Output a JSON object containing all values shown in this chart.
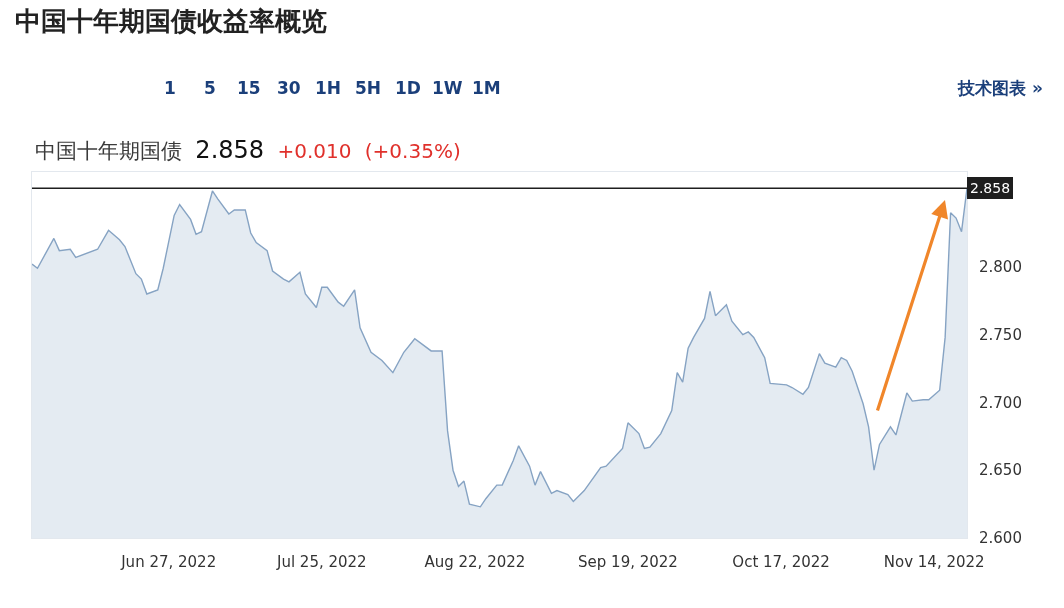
{
  "chart_data": {
    "type": "area",
    "title": "中国十年期国债收益率概览",
    "subtitle": "中国十年期国债 2.858 +0.010 (+0.35%)",
    "annotations": [
      "1",
      "5",
      "15",
      "30",
      "1H",
      "5H",
      "1D",
      "1W",
      "1M",
      "技术图表 »"
    ],
    "x": [
      "2022-06-02",
      "2022-06-03",
      "2022-06-06",
      "2022-06-07",
      "2022-06-09",
      "2022-06-10",
      "2022-06-14",
      "2022-06-16",
      "2022-06-18",
      "2022-06-19",
      "2022-06-21",
      "2022-06-22",
      "2022-06-23",
      "2022-06-25",
      "2022-06-26",
      "2022-06-28",
      "2022-06-29",
      "2022-07-01",
      "2022-07-02",
      "2022-07-03",
      "2022-07-05",
      "2022-07-06",
      "2022-07-08",
      "2022-07-09",
      "2022-07-11",
      "2022-07-12",
      "2022-07-13",
      "2022-07-15",
      "2022-07-16",
      "2022-07-18",
      "2022-07-19",
      "2022-07-21",
      "2022-07-22",
      "2022-07-24",
      "2022-07-25",
      "2022-07-26",
      "2022-07-28",
      "2022-07-29",
      "2022-07-31",
      "2022-08-01",
      "2022-08-03",
      "2022-08-05",
      "2022-08-07",
      "2022-08-09",
      "2022-08-11",
      "2022-08-14",
      "2022-08-16",
      "2022-08-17",
      "2022-08-18",
      "2022-08-19",
      "2022-08-20",
      "2022-08-21",
      "2022-08-23",
      "2022-08-24",
      "2022-08-26",
      "2022-08-27",
      "2022-08-29",
      "2022-08-30",
      "2022-09-01",
      "2022-09-02",
      "2022-09-03",
      "2022-09-05",
      "2022-09-06",
      "2022-09-08",
      "2022-09-09",
      "2022-09-11",
      "2022-09-14",
      "2022-09-15",
      "2022-09-18",
      "2022-09-19",
      "2022-09-21",
      "2022-09-22",
      "2022-09-23",
      "2022-09-25",
      "2022-09-27",
      "2022-09-28",
      "2022-09-29",
      "2022-09-30",
      "2022-10-01",
      "2022-10-03",
      "2022-10-04",
      "2022-10-05",
      "2022-10-07",
      "2022-10-08",
      "2022-10-10",
      "2022-10-11",
      "2022-10-12",
      "2022-10-14",
      "2022-10-15",
      "2022-10-18",
      "2022-10-19",
      "2022-10-21",
      "2022-10-22",
      "2022-10-24",
      "2022-10-25",
      "2022-10-27",
      "2022-10-28",
      "2022-10-29",
      "2022-10-30",
      "2022-11-01",
      "2022-11-02",
      "2022-11-03",
      "2022-11-04",
      "2022-11-06",
      "2022-11-07",
      "2022-11-09",
      "2022-11-10",
      "2022-11-12",
      "2022-11-13",
      "2022-11-15",
      "2022-11-16",
      "2022-11-17",
      "2022-11-18",
      "2022-11-19",
      "2022-11-20"
    ],
    "series": [
      {
        "color": "#86a3c3",
        "values": [
          2.802,
          2.799,
          2.821,
          2.812,
          2.813,
          2.807,
          2.813,
          2.827,
          2.82,
          2.815,
          2.795,
          2.791,
          2.78,
          2.783,
          2.799,
          2.838,
          2.846,
          2.835,
          2.824,
          2.826,
          2.856,
          2.85,
          2.839,
          2.842,
          2.842,
          2.825,
          2.818,
          2.812,
          2.797,
          2.791,
          2.789,
          2.796,
          2.78,
          2.77,
          2.785,
          2.785,
          2.774,
          2.771,
          2.783,
          2.755,
          2.737,
          2.731,
          2.722,
          2.737,
          2.747,
          2.738,
          2.738,
          2.679,
          2.65,
          2.638,
          2.642,
          2.625,
          2.623,
          2.629,
          2.639,
          2.639,
          2.657,
          2.668,
          2.653,
          2.639,
          2.649,
          2.633,
          2.635,
          2.632,
          2.627,
          2.635,
          2.652,
          2.653,
          2.666,
          2.685,
          2.677,
          2.666,
          2.667,
          2.677,
          2.694,
          2.722,
          2.715,
          2.74,
          2.748,
          2.762,
          2.782,
          2.764,
          2.772,
          2.76,
          2.75,
          2.752,
          2.748,
          2.733,
          2.714,
          2.713,
          2.711,
          2.706,
          2.711,
          2.736,
          2.729,
          2.726,
          2.733,
          2.731,
          2.723,
          2.699,
          2.682,
          2.65,
          2.669,
          2.682,
          2.676,
          2.707,
          2.701,
          2.702,
          2.702,
          2.709,
          2.748,
          2.84,
          2.836,
          2.826,
          2.858
        ]
      }
    ],
    "xlim": [
      "2022-06-02",
      "2022-11-20"
    ],
    "xticks": [
      {
        "value": "2022-06-27",
        "label": "Jun 27, 2022"
      },
      {
        "value": "2022-07-25",
        "label": "Jul 25, 2022"
      },
      {
        "value": "2022-08-22",
        "label": "Aug 22, 2022"
      },
      {
        "value": "2022-09-19",
        "label": "Sep 19, 2022"
      },
      {
        "value": "2022-10-17",
        "label": "Oct 17, 2022"
      },
      {
        "value": "2022-11-14",
        "label": "Nov 14, 2022"
      }
    ],
    "ylim": [
      2.6,
      2.87
    ],
    "yticks": [
      {
        "value": 2.6,
        "label": "2.600"
      },
      {
        "value": 2.65,
        "label": "2.650"
      },
      {
        "value": 2.7,
        "label": "2.700"
      },
      {
        "value": 2.75,
        "label": "2.750"
      },
      {
        "value": 2.8,
        "label": "2.800"
      }
    ],
    "ref_lines": [
      {
        "axis": "y",
        "value": 2.858,
        "label": "2.858",
        "color": "#1e1e1e"
      }
    ]
  }
}
